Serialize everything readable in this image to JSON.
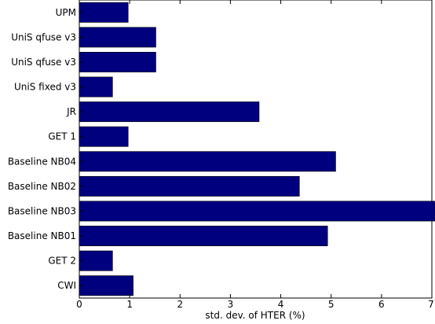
{
  "chart_data": {
    "type": "bar",
    "orientation": "horizontal",
    "categories": [
      "UPM",
      "UniS qfuse v3",
      "UniS qfuse v3",
      "UniS fixed v3",
      "JR",
      "GET 1",
      "Baseline NB04",
      "Baseline NB02",
      "Baseline NB03",
      "Baseline NB01",
      "GET 2",
      "CWI"
    ],
    "values": [
      0.97,
      1.52,
      1.52,
      0.66,
      3.57,
      0.97,
      5.09,
      4.37,
      7.15,
      4.93,
      0.66,
      1.07
    ],
    "xlabel": "std. dev. of HTER (%)",
    "ylabel": "",
    "xlim": [
      0,
      7
    ],
    "xticks": [
      0,
      1,
      2,
      3,
      4,
      5,
      6,
      7
    ],
    "grid": false,
    "bar_color": "#00007f"
  }
}
